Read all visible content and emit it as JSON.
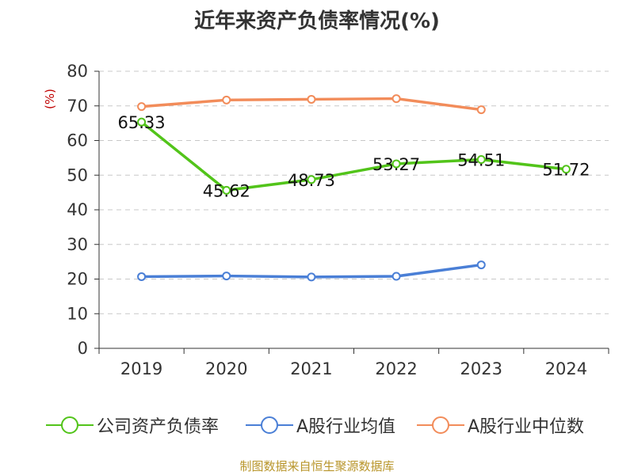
{
  "title": "近年来资产负债率情况(%)",
  "unit_label": "(%)",
  "footer": "制图数据来自恒生聚源数据库",
  "chart_data": {
    "type": "line",
    "title": "近年来资产负债率情况(%)",
    "ylabel": "(%)",
    "xlabel": "",
    "categories": [
      "2019",
      "2020",
      "2021",
      "2022",
      "2023",
      "2024"
    ],
    "ylim": [
      0,
      80
    ],
    "yticks": [
      0,
      10,
      20,
      30,
      40,
      50,
      60,
      70,
      80
    ],
    "grid": "horizontal-dashed",
    "legend_position": "bottom",
    "series": [
      {
        "name": "公司资产负债率",
        "color": "#52c41a",
        "values": [
          65.33,
          45.62,
          48.73,
          53.27,
          54.51,
          51.72
        ],
        "labels": [
          "65.33",
          "45.62",
          "48.73",
          "53.27",
          "54.51",
          "51.72"
        ]
      },
      {
        "name": "A股行业均值",
        "color": "#4a7fd6",
        "values": [
          20.7,
          20.9,
          20.6,
          20.8,
          24.1,
          null
        ]
      },
      {
        "name": "A股行业中位数",
        "color": "#f28c5a",
        "values": [
          69.8,
          71.7,
          71.9,
          72.1,
          68.9,
          null
        ]
      }
    ]
  }
}
